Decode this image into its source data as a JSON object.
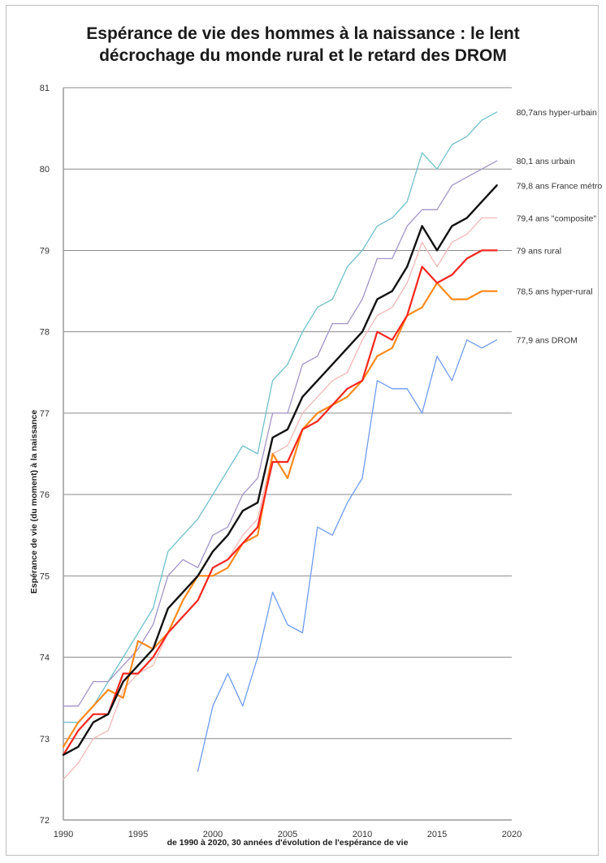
{
  "chart_data": {
    "type": "line",
    "title": "Espérance de vie des hommes à la naissance : le lent décrochage du monde rural et le retard des DROM",
    "title_lines": [
      "Espérance de vie des hommes à la naissance : le lent",
      "décrochage du monde rural et le retard des DROM"
    ],
    "xlabel": "de 1990 à 2020, 30 années d'évolution de l'espérance de vie",
    "ylabel": "Espérance de vie (du moment) à la naissance",
    "xlim": [
      1990,
      2020
    ],
    "ylim": [
      72,
      81
    ],
    "x_ticks": [
      "1990",
      "1995",
      "2000",
      "2005",
      "2010",
      "2015",
      "2020"
    ],
    "y_ticks": [
      "72",
      "73",
      "74",
      "75",
      "76",
      "77",
      "78",
      "79",
      "80",
      "81"
    ],
    "grid": "horizontal",
    "legend": "end-of-line labels (right)",
    "x": [
      1990,
      1991,
      1992,
      1993,
      1994,
      1995,
      1996,
      1997,
      1998,
      1999,
      2000,
      2001,
      2002,
      2003,
      2004,
      2005,
      2006,
      2007,
      2008,
      2009,
      2010,
      2011,
      2012,
      2013,
      2014,
      2015,
      2016,
      2017,
      2018,
      2019
    ],
    "series": [
      {
        "name": "hyper-urbain",
        "label": "80,7ans  hyper-urbain",
        "color": "#6fc0cc",
        "width": 1.3,
        "start": 1990,
        "values": [
          73.2,
          73.2,
          73.4,
          73.7,
          74.0,
          74.3,
          74.6,
          75.3,
          75.5,
          75.7,
          76.0,
          76.3,
          76.6,
          76.5,
          77.4,
          77.6,
          78.0,
          78.3,
          78.4,
          78.8,
          79.0,
          79.3,
          79.4,
          79.6,
          80.2,
          80.0,
          80.3,
          80.4,
          80.6,
          80.7
        ]
      },
      {
        "name": "urbain",
        "label": "80,1 ans urbain",
        "color": "#a394c8",
        "width": 1.3,
        "start": 1990,
        "values": [
          73.4,
          73.4,
          73.7,
          73.7,
          73.9,
          74.1,
          74.4,
          75.0,
          75.2,
          75.1,
          75.5,
          75.6,
          76.0,
          76.2,
          77.0,
          77.0,
          77.6,
          77.7,
          78.1,
          78.1,
          78.4,
          78.9,
          78.9,
          79.3,
          79.5,
          79.5,
          79.8,
          79.9,
          80.0,
          80.1
        ]
      },
      {
        "name": "composite",
        "label": "79,4 ans \"composite\"",
        "color": "#f2b8b8",
        "width": 1.3,
        "start": 1990,
        "values": [
          72.5,
          72.7,
          73.0,
          73.1,
          73.6,
          73.8,
          73.9,
          74.3,
          74.5,
          74.7,
          75.1,
          75.2,
          75.5,
          75.7,
          76.5,
          76.6,
          77.0,
          77.2,
          77.4,
          77.5,
          77.9,
          78.2,
          78.3,
          78.6,
          79.1,
          78.8,
          79.1,
          79.2,
          79.4,
          79.4
        ]
      },
      {
        "name": "hyper-rural",
        "label": "78,5 ans hyper-rural",
        "color": "#ff8a1c",
        "width": 2.2,
        "start": 1990,
        "values": [
          72.9,
          73.2,
          73.4,
          73.6,
          73.5,
          74.2,
          74.1,
          74.3,
          74.7,
          75.0,
          75.0,
          75.1,
          75.4,
          75.5,
          76.5,
          76.2,
          76.8,
          77.0,
          77.1,
          77.2,
          77.4,
          77.7,
          77.8,
          78.2,
          78.3,
          78.6,
          78.4,
          78.4,
          78.5,
          78.5
        ]
      },
      {
        "name": "rural",
        "label": "79 ans rural",
        "color": "#f5261c",
        "width": 2.2,
        "start": 1990,
        "values": [
          72.8,
          73.1,
          73.3,
          73.3,
          73.8,
          73.8,
          74.0,
          74.3,
          74.5,
          74.7,
          75.1,
          75.2,
          75.4,
          75.6,
          76.4,
          76.4,
          76.8,
          76.9,
          77.1,
          77.3,
          77.4,
          78.0,
          77.9,
          78.2,
          78.8,
          78.6,
          78.7,
          78.9,
          79.0,
          79.0
        ]
      },
      {
        "name": "France métro",
        "label": "79,8 ans France métro",
        "color": "#111111",
        "width": 2.4,
        "start": 1990,
        "values": [
          72.8,
          72.9,
          73.2,
          73.3,
          73.7,
          73.9,
          74.1,
          74.6,
          74.8,
          75.0,
          75.3,
          75.5,
          75.8,
          75.9,
          76.7,
          76.8,
          77.2,
          77.4,
          77.6,
          77.8,
          78.0,
          78.4,
          78.5,
          78.8,
          79.3,
          79.0,
          79.3,
          79.4,
          79.6,
          79.8
        ]
      },
      {
        "name": "DROM",
        "label": "77,9 ans DROM",
        "color": "#6d9cf0",
        "width": 1.3,
        "start": 1999,
        "values": [
          72.6,
          73.4,
          73.8,
          73.4,
          74.0,
          74.8,
          74.4,
          74.3,
          75.6,
          75.5,
          75.9,
          76.2,
          77.4,
          77.3,
          77.3,
          77.0,
          77.7,
          77.4,
          77.9,
          77.8,
          77.9
        ]
      }
    ]
  }
}
